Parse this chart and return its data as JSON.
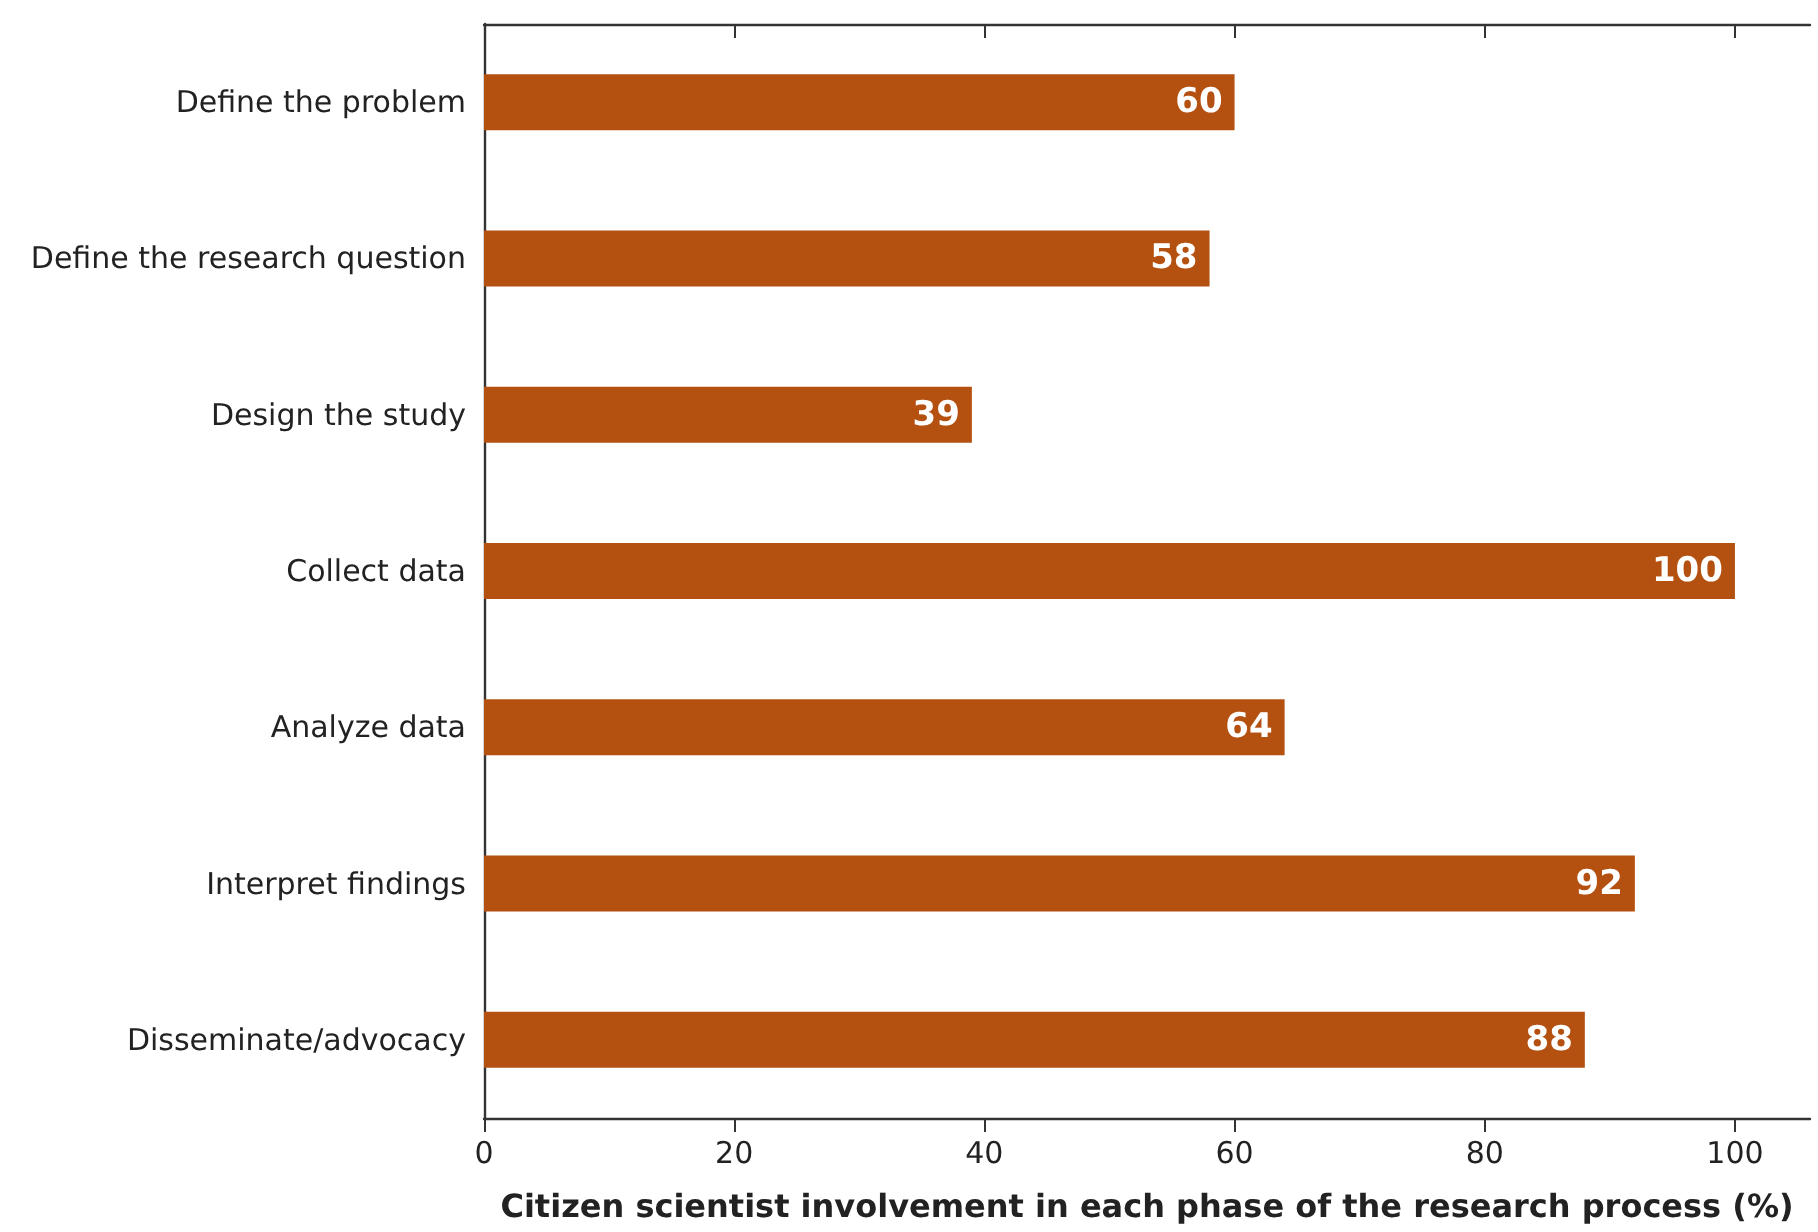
{
  "chart_data": {
    "type": "bar",
    "orientation": "horizontal",
    "xlabel": "Citizen scientist involvement in each phase of the research process (%)",
    "categories": [
      "Define the problem",
      "Define the research question",
      "Design the study",
      "Collect data",
      "Analyze data",
      "Interpret findings",
      "Disseminate/advocacy"
    ],
    "values": [
      60,
      58,
      39,
      100,
      64,
      92,
      88
    ],
    "color": "#b45111",
    "data_labels": true,
    "xlim": [
      0,
      106
    ],
    "xticks": [
      0,
      20,
      40,
      60,
      80,
      100
    ],
    "grid": false
  }
}
